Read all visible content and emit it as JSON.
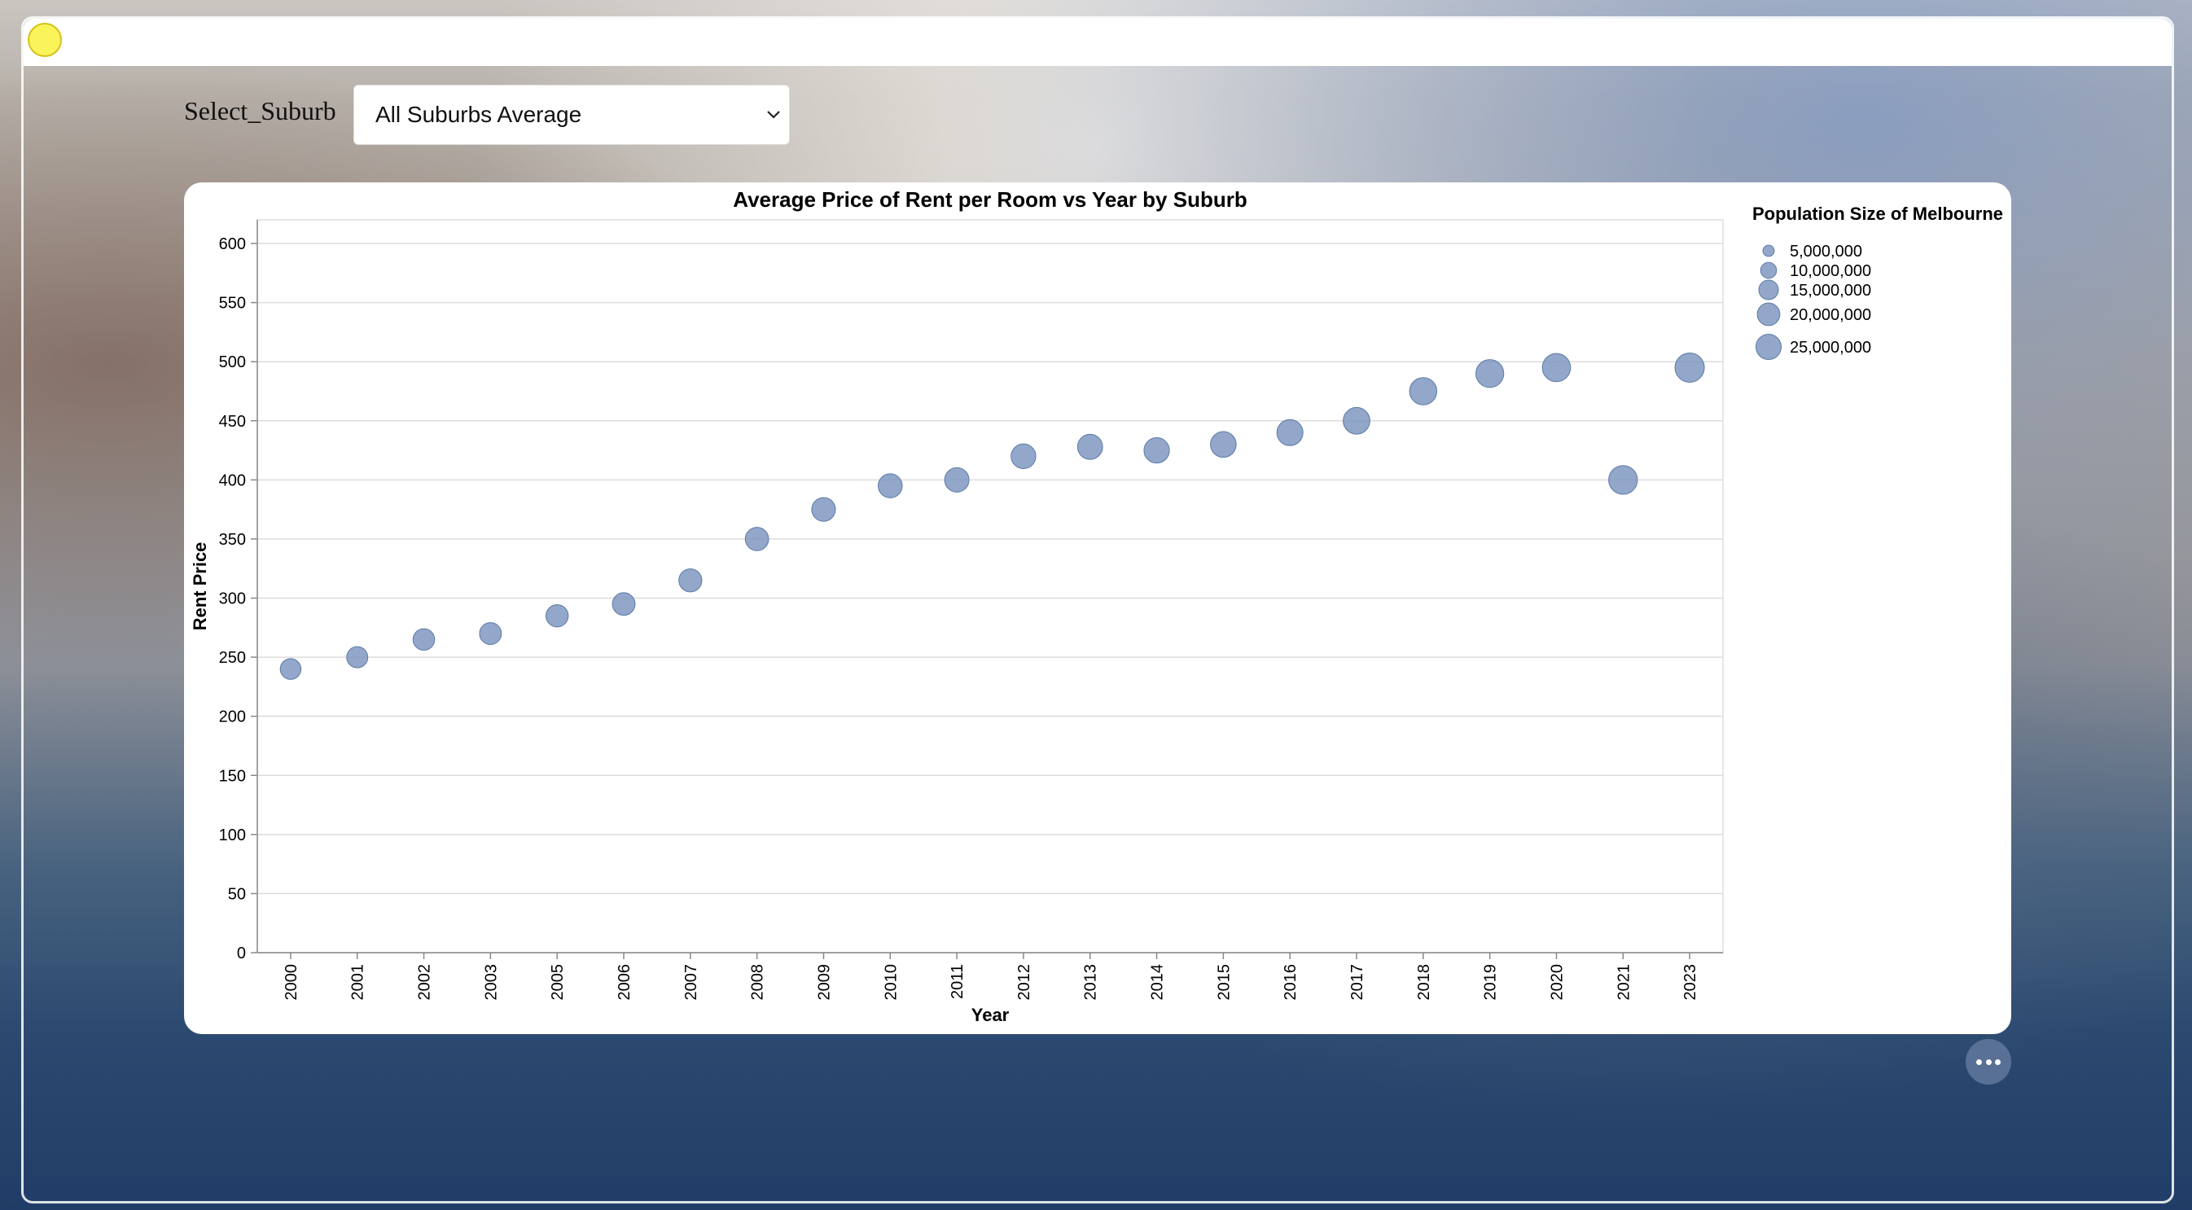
{
  "filter": {
    "label": "Select_Suburb",
    "selected": "All Suburbs Average"
  },
  "colors": {
    "point_fill": "#7f98c0",
    "point_stroke": "#5d7aa8"
  },
  "chart_data": {
    "type": "scatter",
    "title": "Average Price of Rent per Room vs Year by Suburb",
    "xlabel": "Year",
    "ylabel": "Rent Price",
    "ylim": [
      0,
      620
    ],
    "yticks": [
      0,
      50,
      100,
      150,
      200,
      250,
      300,
      350,
      400,
      450,
      500,
      550,
      600
    ],
    "grid": true,
    "categories": [
      "2000",
      "2001",
      "2002",
      "2003",
      "2005",
      "2006",
      "2007",
      "2008",
      "2009",
      "2010",
      "2011",
      "2012",
      "2013",
      "2014",
      "2015",
      "2016",
      "2017",
      "2018",
      "2019",
      "2020",
      "2021",
      "2023"
    ],
    "values": [
      240,
      250,
      265,
      270,
      285,
      295,
      315,
      350,
      375,
      395,
      400,
      420,
      428,
      425,
      430,
      440,
      450,
      475,
      490,
      495,
      400,
      495
    ],
    "size": [
      13000000,
      13500000,
      14000000,
      14500000,
      15000000,
      15500000,
      16000000,
      16500000,
      17000000,
      17500000,
      18000000,
      18500000,
      19000000,
      19500000,
      20000000,
      20500000,
      21500000,
      22500000,
      23500000,
      24000000,
      25000000,
      26000000
    ],
    "size_legend": {
      "title": "Population Size of Melbourne",
      "placement": "right",
      "entries": [
        {
          "label": "5,000,000",
          "value": 5000000
        },
        {
          "label": "10,000,000",
          "value": 10000000
        },
        {
          "label": "15,000,000",
          "value": 15000000
        },
        {
          "label": "20,000,000",
          "value": 20000000
        },
        {
          "label": "25,000,000",
          "value": 25000000
        }
      ]
    }
  }
}
